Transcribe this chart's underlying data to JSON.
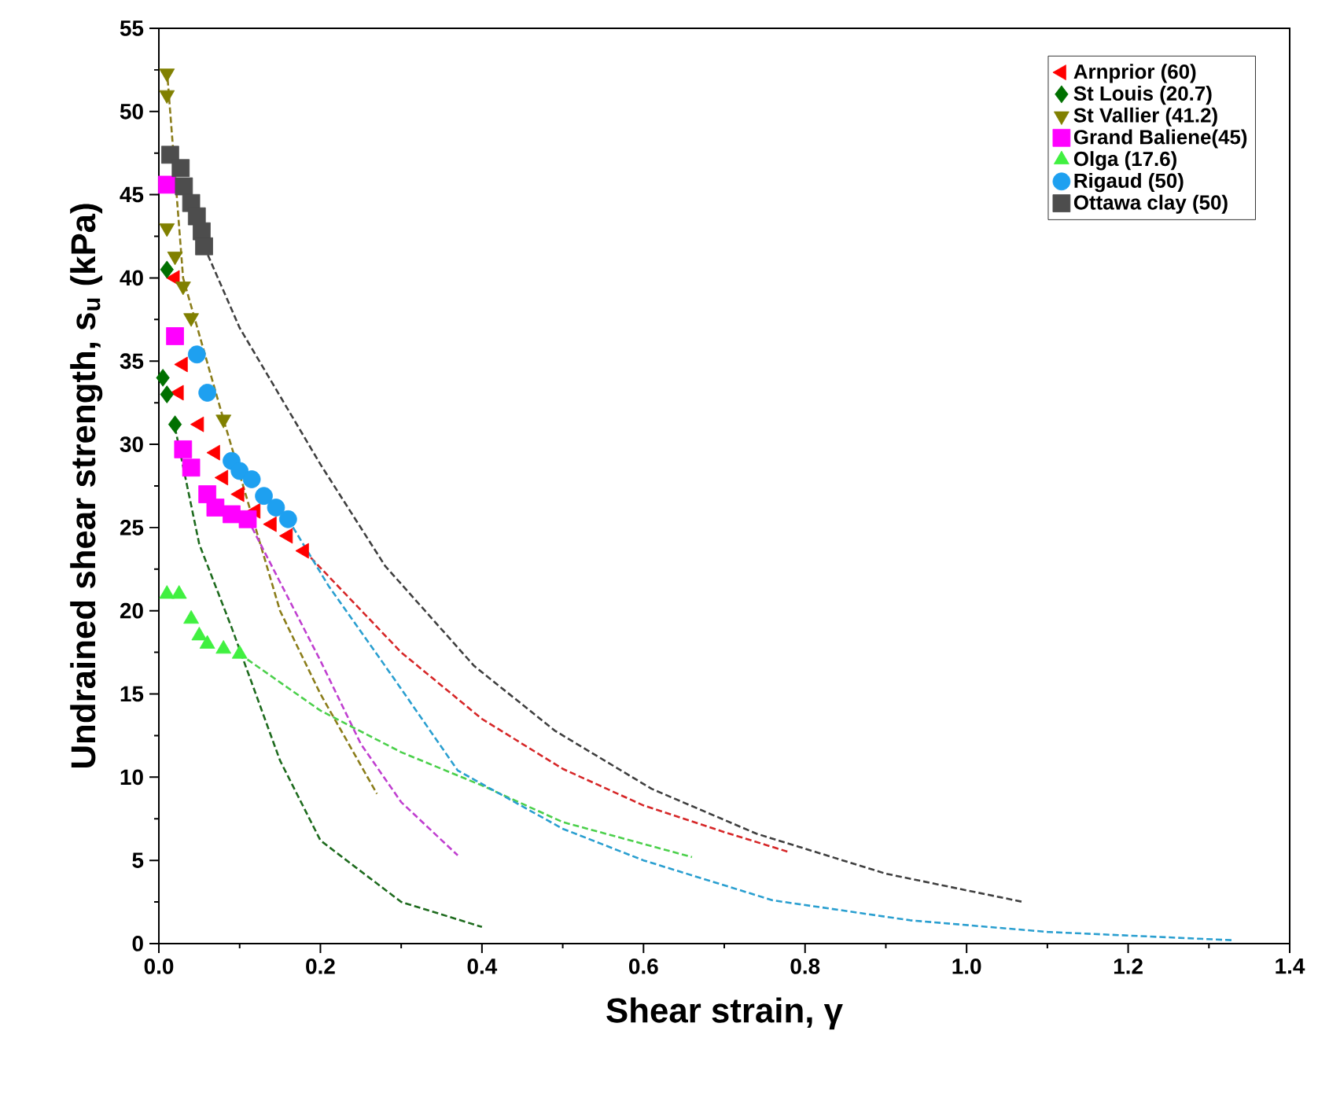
{
  "chart_data": {
    "type": "scatter",
    "xlabel": "Shear strain, γ",
    "ylabel": "Undrained shear strength, s$_{u}$ (kPa)",
    "xlim": [
      0,
      1.4
    ],
    "ylim": [
      0,
      55
    ],
    "xticks": [
      {
        "value": 0,
        "label": "0.0"
      },
      {
        "value": 0.2,
        "label": "0.2"
      },
      {
        "value": 0.4,
        "label": "0.4"
      },
      {
        "value": 0.6,
        "label": "0.6"
      },
      {
        "value": 0.8,
        "label": "0.8"
      },
      {
        "value": 1.0,
        "label": "1.0"
      },
      {
        "value": 1.2,
        "label": "1.2"
      },
      {
        "value": 1.4,
        "label": "1.4"
      }
    ],
    "yticks": [
      0,
      5,
      10,
      15,
      20,
      25,
      30,
      35,
      40,
      45,
      50,
      55
    ],
    "grid": false,
    "legend": "top right",
    "series": [
      {
        "type": "line",
        "line_style": "dashed",
        "marker": "none",
        "color": "#d62728",
        "x": [
          0.18,
          0.3,
          0.4,
          0.5,
          0.6,
          0.7,
          0.78
        ],
        "values": [
          23.6,
          17.5,
          13.5,
          10.5,
          8.3,
          6.7,
          5.5
        ]
      },
      {
        "type": "line",
        "line_style": "dashed",
        "marker": "none",
        "color": "#1e6b1e",
        "x": [
          0.02,
          0.05,
          0.09,
          0.15,
          0.2,
          0.3,
          0.4
        ],
        "values": [
          31,
          24,
          19,
          11,
          6.2,
          2.5,
          1
        ]
      },
      {
        "type": "line",
        "line_style": "dashed",
        "marker": "none",
        "color": "#8b7d1a",
        "x": [
          0.01,
          0.03,
          0.08,
          0.15,
          0.2,
          0.27
        ],
        "values": [
          52.5,
          40,
          31.5,
          20,
          15,
          9
        ]
      },
      {
        "type": "line",
        "line_style": "dashed",
        "marker": "none",
        "color": "#c040d0",
        "x": [
          0.11,
          0.2,
          0.25,
          0.3,
          0.37
        ],
        "values": [
          25.5,
          17,
          12,
          8.5,
          5.3
        ]
      },
      {
        "type": "line",
        "line_style": "dashed",
        "marker": "none",
        "color": "#4cd04c",
        "x": [
          0.1,
          0.2,
          0.3,
          0.4,
          0.5,
          0.66
        ],
        "values": [
          17.4,
          14,
          11.5,
          9.5,
          7.3,
          5.2
        ]
      },
      {
        "type": "line",
        "line_style": "dashed",
        "marker": "none",
        "color": "#2a9fd0",
        "x": [
          0.16,
          0.21,
          0.29,
          0.37,
          0.5,
          0.6,
          0.76,
          0.93,
          1.1,
          1.33
        ],
        "values": [
          25.5,
          21.5,
          16,
          10.4,
          6.9,
          5,
          2.6,
          1.4,
          0.7,
          0.2
        ]
      },
      {
        "type": "line",
        "line_style": "dashed",
        "marker": "none",
        "color": "#404040",
        "x": [
          0.056,
          0.1,
          0.2,
          0.28,
          0.39,
          0.49,
          0.61,
          0.74,
          0.9,
          1.07
        ],
        "values": [
          41.9,
          37,
          28.8,
          22.7,
          16.7,
          12.8,
          9.3,
          6.6,
          4.2,
          2.5
        ]
      },
      {
        "name": "Arnprior (60)",
        "marker": "triangle-left",
        "color": "#ff0000",
        "x": [
          0.02,
          0.025,
          0.03,
          0.05,
          0.07,
          0.08,
          0.1,
          0.12,
          0.14,
          0.16,
          0.18
        ],
        "values": [
          40,
          33.1,
          34.8,
          31.2,
          29.5,
          28,
          27,
          26,
          25.2,
          24.5,
          23.6
        ]
      },
      {
        "name": "St Louis (20.7)",
        "marker": "diamond",
        "color": "#007000",
        "x": [
          0.01,
          0.005,
          0.01,
          0.02
        ],
        "values": [
          40.5,
          34,
          33,
          31.2
        ]
      },
      {
        "name": "St Vallier (41.2)",
        "marker": "triangle-down",
        "color": "#808000",
        "x": [
          0.01,
          0.01,
          0.01,
          0.02,
          0.03,
          0.04,
          0.08
        ],
        "values": [
          52.3,
          51,
          43,
          41.3,
          39.5,
          37.6,
          31.5
        ]
      },
      {
        "name": "Grand Baliene(45)",
        "marker": "square",
        "color": "#ff00ff",
        "x": [
          0.01,
          0.02,
          0.03,
          0.04,
          0.06,
          0.07,
          0.09,
          0.11
        ],
        "values": [
          45.6,
          36.5,
          29.7,
          28.6,
          27,
          26.2,
          25.8,
          25.5
        ]
      },
      {
        "name": "Olga (17.6)",
        "marker": "triangle",
        "color": "#40f040",
        "x": [
          0.01,
          0.025,
          0.04,
          0.05,
          0.06,
          0.08,
          0.1
        ],
        "values": [
          21,
          21,
          19.5,
          18.5,
          18,
          17.7,
          17.4
        ]
      },
      {
        "name": "Rigaud (50)",
        "marker": "circle",
        "color": "#1ea0f0",
        "x": [
          0.047,
          0.06,
          0.09,
          0.1,
          0.115,
          0.13,
          0.145,
          0.16
        ],
        "values": [
          35.4,
          33.1,
          29,
          28.4,
          27.9,
          26.9,
          26.2,
          25.5
        ]
      },
      {
        "name": "Ottawa clay (50)",
        "marker": "square",
        "color": "#4d4d4d",
        "x": [
          0.014,
          0.027,
          0.031,
          0.04,
          0.047,
          0.053,
          0.056
        ],
        "values": [
          47.4,
          46.6,
          45.5,
          44.5,
          43.7,
          42.8,
          41.9
        ]
      }
    ]
  }
}
